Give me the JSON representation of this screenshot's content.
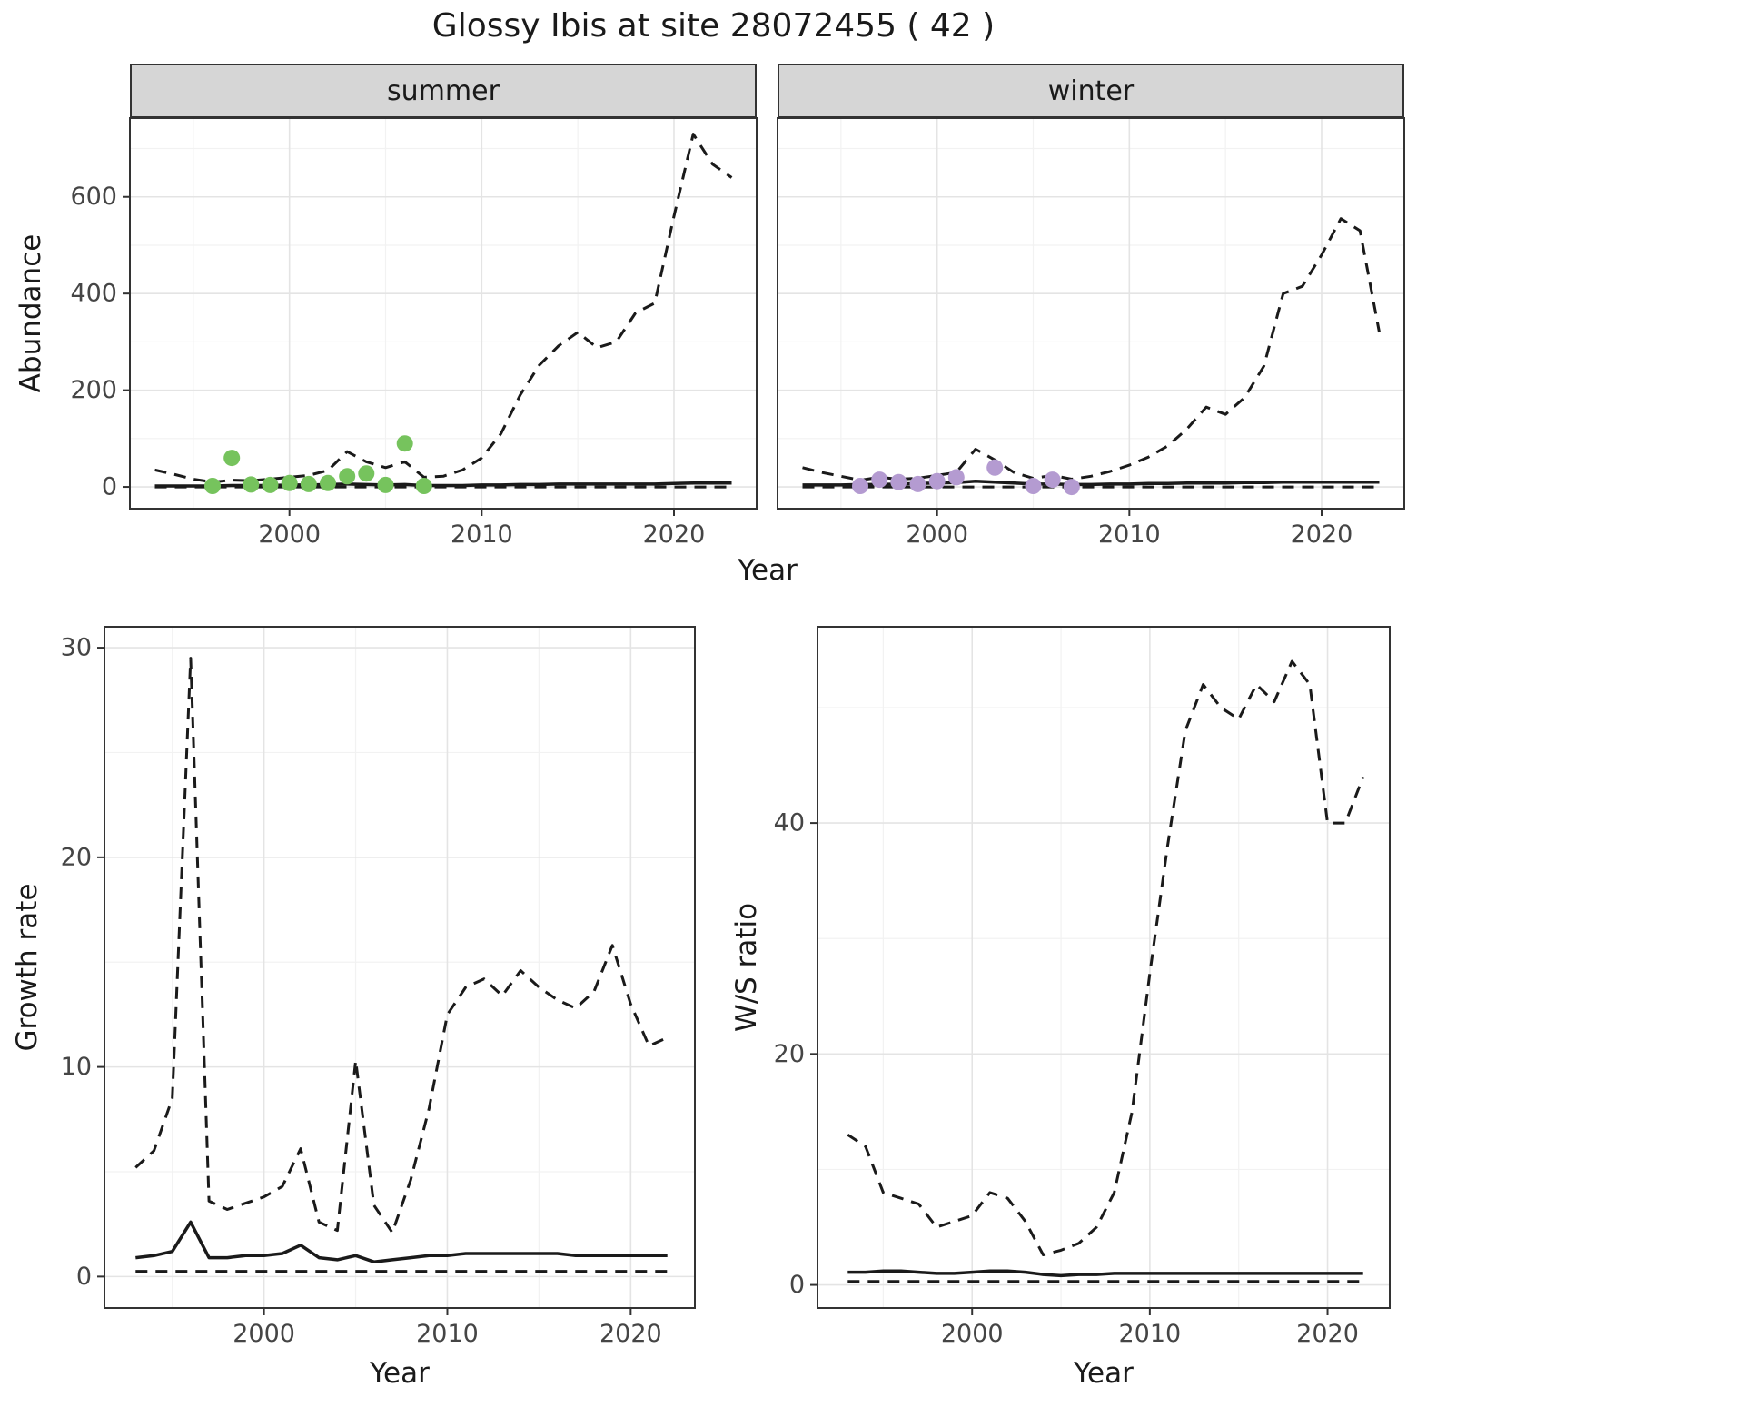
{
  "title": "Glossy Ibis at site 28072455 ( 42 )",
  "labels": {
    "year": "Year",
    "abundance": "Abundance",
    "growth": "Growth rate",
    "ws": "W/S ratio",
    "summer": "summer",
    "winter": "winter"
  },
  "colors": {
    "line": "#1a1a1a",
    "grid_major": "#e4e4e4",
    "grid_minor": "#f2f2f2",
    "strip_bg": "#d6d6d6",
    "panel_border": "#333333",
    "tick_text": "#454545",
    "summer_points": "#76c35d",
    "winter_points": "#b49bd1"
  },
  "chart_data": [
    {
      "id": "abundance_summer",
      "type": "line",
      "facet": "summer",
      "xlabel": "Year",
      "ylabel": "Abundance",
      "xlim": [
        1991.7,
        2024.3
      ],
      "ylim": [
        -45,
        763
      ],
      "xticks": [
        2000,
        2010,
        2020
      ],
      "yticks": [
        0,
        200,
        400,
        600
      ],
      "xminor": [
        1995,
        2005,
        2015
      ],
      "yminor": [
        100,
        300,
        500,
        700
      ],
      "x": [
        1993,
        1994,
        1995,
        1996,
        1997,
        1998,
        1999,
        2000,
        2001,
        2002,
        2003,
        2004,
        2005,
        2006,
        2007,
        2008,
        2009,
        2010,
        2011,
        2012,
        2013,
        2014,
        2015,
        2016,
        2017,
        2018,
        2019,
        2020,
        2021,
        2022,
        2023
      ],
      "series": [
        {
          "name": "upper_ci",
          "style": "dashed",
          "values": [
            35,
            26,
            16,
            10,
            14,
            13,
            16,
            20,
            24,
            34,
            73,
            52,
            40,
            52,
            20,
            22,
            35,
            60,
            110,
            190,
            252,
            292,
            320,
            288,
            300,
            360,
            380,
            560,
            730,
            668,
            640
          ]
        },
        {
          "name": "median",
          "style": "solid",
          "values": [
            2,
            2,
            2,
            2,
            3,
            3,
            3,
            4,
            4,
            5,
            6,
            5,
            4,
            5,
            3,
            3,
            3,
            4,
            4,
            5,
            5,
            6,
            6,
            6,
            6,
            6,
            6,
            7,
            8,
            8,
            8
          ]
        },
        {
          "name": "lower_ci",
          "style": "dashed",
          "values": [
            0,
            0,
            0,
            0,
            0,
            0,
            0,
            0,
            0,
            0,
            0,
            0,
            0,
            0,
            0,
            0,
            0,
            0,
            0,
            0,
            0,
            0,
            0,
            0,
            0,
            0,
            0,
            0,
            0,
            0,
            0
          ]
        },
        {
          "name": "observed_counts",
          "style": "points",
          "color": "#76c35d",
          "x": [
            1996,
            1997,
            1998,
            1999,
            2000,
            2001,
            2002,
            2003,
            2004,
            2005,
            2006,
            2007
          ],
          "values": [
            2,
            60,
            5,
            4,
            8,
            6,
            8,
            22,
            28,
            4,
            90,
            2
          ]
        }
      ]
    },
    {
      "id": "abundance_winter",
      "type": "line",
      "facet": "winter",
      "xlabel": "Year",
      "ylabel": "Abundance",
      "xlim": [
        1991.7,
        2024.3
      ],
      "ylim": [
        -45,
        763
      ],
      "xticks": [
        2000,
        2010,
        2020
      ],
      "yticks": [
        0,
        200,
        400,
        600
      ],
      "xminor": [
        1995,
        2005,
        2015
      ],
      "yminor": [
        100,
        300,
        500,
        700
      ],
      "x": [
        1993,
        1994,
        1995,
        1996,
        1997,
        1998,
        1999,
        2000,
        2001,
        2002,
        2003,
        2004,
        2005,
        2006,
        2007,
        2008,
        2009,
        2010,
        2011,
        2012,
        2013,
        2014,
        2015,
        2016,
        2017,
        2018,
        2019,
        2020,
        2021,
        2022,
        2023
      ],
      "series": [
        {
          "name": "upper_ci",
          "style": "dashed",
          "values": [
            40,
            30,
            22,
            14,
            20,
            16,
            18,
            24,
            30,
            78,
            56,
            30,
            18,
            24,
            16,
            22,
            32,
            45,
            62,
            85,
            120,
            165,
            150,
            185,
            250,
            400,
            415,
            480,
            555,
            530,
            320
          ]
        },
        {
          "name": "median",
          "style": "solid",
          "values": [
            4,
            4,
            4,
            5,
            5,
            6,
            7,
            8,
            9,
            12,
            10,
            8,
            6,
            6,
            5,
            5,
            6,
            6,
            7,
            7,
            8,
            8,
            8,
            9,
            9,
            10,
            10,
            10,
            10,
            10,
            10
          ]
        },
        {
          "name": "lower_ci",
          "style": "dashed",
          "values": [
            0,
            0,
            0,
            0,
            0,
            0,
            0,
            0,
            0,
            0,
            0,
            0,
            0,
            0,
            0,
            0,
            0,
            0,
            0,
            0,
            0,
            0,
            0,
            0,
            0,
            0,
            0,
            0,
            0,
            0,
            0
          ]
        },
        {
          "name": "observed_counts",
          "style": "points",
          "color": "#b49bd1",
          "x": [
            1996,
            1997,
            1998,
            1999,
            2000,
            2001,
            2003,
            2005,
            2006,
            2007
          ],
          "values": [
            2,
            15,
            10,
            6,
            12,
            20,
            40,
            2,
            15,
            0
          ]
        }
      ]
    },
    {
      "id": "growth_rate",
      "type": "line",
      "xlabel": "Year",
      "ylabel": "Growth rate",
      "xlim": [
        1991.3,
        2023.5
      ],
      "ylim": [
        -1.5,
        31
      ],
      "xticks": [
        2000,
        2010,
        2020
      ],
      "yticks": [
        0,
        10,
        20,
        30
      ],
      "xminor": [
        1995,
        2005,
        2015
      ],
      "yminor": [
        5,
        15,
        25
      ],
      "x": [
        1993,
        1994,
        1995,
        1996,
        1997,
        1998,
        1999,
        2000,
        2001,
        2002,
        2003,
        2004,
        2005,
        2006,
        2007,
        2008,
        2009,
        2010,
        2011,
        2012,
        2013,
        2014,
        2015,
        2016,
        2017,
        2018,
        2019,
        2020,
        2021,
        2022
      ],
      "series": [
        {
          "name": "upper_ci",
          "style": "dashed",
          "values": [
            5.2,
            6.0,
            8.5,
            29.5,
            3.6,
            3.2,
            3.5,
            3.8,
            4.3,
            6.1,
            2.6,
            2.2,
            10.3,
            3.4,
            2.1,
            4.6,
            8.0,
            12.5,
            13.8,
            14.2,
            13.4,
            14.6,
            13.8,
            13.2,
            12.8,
            13.6,
            15.8,
            13.0,
            11.0,
            11.4
          ]
        },
        {
          "name": "median",
          "style": "solid",
          "values": [
            0.9,
            1.0,
            1.2,
            2.6,
            0.9,
            0.9,
            1.0,
            1.0,
            1.1,
            1.5,
            0.9,
            0.8,
            1.0,
            0.7,
            0.8,
            0.9,
            1.0,
            1.0,
            1.1,
            1.1,
            1.1,
            1.1,
            1.1,
            1.1,
            1.0,
            1.0,
            1.0,
            1.0,
            1.0,
            1.0
          ]
        },
        {
          "name": "lower_ci",
          "style": "dashed",
          "values": [
            0.25,
            0.25,
            0.25,
            0.25,
            0.25,
            0.25,
            0.25,
            0.25,
            0.25,
            0.25,
            0.25,
            0.25,
            0.25,
            0.25,
            0.25,
            0.25,
            0.25,
            0.25,
            0.25,
            0.25,
            0.25,
            0.25,
            0.25,
            0.25,
            0.25,
            0.25,
            0.25,
            0.25,
            0.25,
            0.25
          ]
        }
      ]
    },
    {
      "id": "ws_ratio",
      "type": "line",
      "xlabel": "Year",
      "ylabel": "W/S ratio",
      "xlim": [
        1991.3,
        2023.5
      ],
      "ylim": [
        -2,
        57
      ],
      "xticks": [
        2000,
        2010,
        2020
      ],
      "yticks": [
        0,
        20,
        40
      ],
      "xminor": [
        1995,
        2005,
        2015
      ],
      "yminor": [
        10,
        30,
        50
      ],
      "x": [
        1993,
        1994,
        1995,
        1996,
        1997,
        1998,
        1999,
        2000,
        2001,
        2002,
        2003,
        2004,
        2005,
        2006,
        2007,
        2008,
        2009,
        2010,
        2011,
        2012,
        2013,
        2014,
        2015,
        2016,
        2017,
        2018,
        2019,
        2020,
        2021,
        2022
      ],
      "series": [
        {
          "name": "upper_ci",
          "style": "dashed",
          "values": [
            13,
            12,
            8,
            7.5,
            7,
            5,
            5.5,
            6,
            8,
            7.5,
            5.5,
            2.6,
            3,
            3.6,
            5,
            8,
            15,
            27,
            38,
            48,
            52,
            50,
            49,
            52,
            50.5,
            54,
            52,
            40,
            40,
            44
          ]
        },
        {
          "name": "median",
          "style": "solid",
          "values": [
            1.1,
            1.1,
            1.2,
            1.2,
            1.1,
            1.0,
            1.0,
            1.1,
            1.2,
            1.2,
            1.1,
            0.9,
            0.8,
            0.9,
            0.9,
            1.0,
            1.0,
            1.0,
            1.0,
            1.0,
            1.0,
            1.0,
            1.0,
            1.0,
            1.0,
            1.0,
            1.0,
            1.0,
            1.0,
            1.0
          ]
        },
        {
          "name": "lower_ci",
          "style": "dashed",
          "values": [
            0.3,
            0.3,
            0.3,
            0.3,
            0.3,
            0.3,
            0.3,
            0.3,
            0.3,
            0.3,
            0.3,
            0.3,
            0.3,
            0.3,
            0.3,
            0.3,
            0.3,
            0.3,
            0.3,
            0.3,
            0.3,
            0.3,
            0.3,
            0.3,
            0.3,
            0.3,
            0.3,
            0.3,
            0.3,
            0.3
          ]
        }
      ]
    }
  ]
}
